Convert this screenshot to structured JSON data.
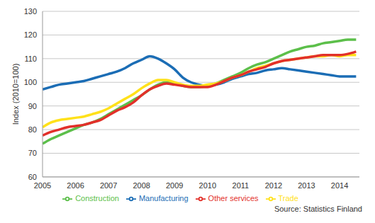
{
  "chart_data": {
    "type": "line",
    "y_label": "Index (2010=100)",
    "source": "Source: Statistics Finland",
    "x": [
      2005,
      2005.25,
      2005.5,
      2005.75,
      2006,
      2006.25,
      2006.5,
      2006.75,
      2007,
      2007.25,
      2007.5,
      2007.75,
      2008,
      2008.25,
      2008.5,
      2008.75,
      2009,
      2009.25,
      2009.5,
      2009.75,
      2010,
      2010.25,
      2010.5,
      2010.75,
      2011,
      2011.25,
      2011.5,
      2011.75,
      2012,
      2012.25,
      2012.5,
      2012.75,
      2013,
      2013.25,
      2013.5,
      2013.75,
      2014,
      2014.25,
      2014.5
    ],
    "series": [
      {
        "name": "Manufacturing",
        "color": "#1b6db5",
        "values": [
          97,
          98,
          99,
          99.5,
          100,
          100.5,
          101.5,
          102.5,
          103.5,
          104.5,
          106,
          108,
          109.5,
          111,
          110,
          108,
          105.5,
          102,
          100,
          99,
          98.5,
          99,
          100,
          101.5,
          102.5,
          103.5,
          104,
          105,
          105.5,
          106,
          105.5,
          105,
          104.5,
          104,
          103.5,
          103,
          102.5,
          102.5,
          102.5
        ]
      },
      {
        "name": "Construction",
        "color": "#5cbf4a",
        "values": [
          74,
          76,
          77.5,
          79,
          80.5,
          82,
          83,
          84.5,
          86.5,
          88.5,
          90.5,
          92.5,
          94.5,
          97,
          99,
          100,
          99.5,
          98.5,
          98,
          98,
          98.5,
          99.5,
          101,
          102.5,
          104,
          106,
          107.5,
          108.5,
          110,
          111.5,
          113,
          114,
          115,
          115.5,
          116.5,
          117,
          117.5,
          118,
          118
        ]
      },
      {
        "name": "Trade",
        "color": "#ffe11a",
        "values": [
          81,
          83,
          84,
          84.5,
          85,
          85.5,
          86.5,
          87.5,
          89,
          91,
          93,
          95,
          97.5,
          99.5,
          101,
          101,
          100,
          99,
          98.5,
          98.5,
          99,
          99.5,
          100.5,
          102,
          103,
          104.5,
          106,
          107,
          108,
          109,
          109.5,
          110,
          110.5,
          111,
          111,
          111.5,
          111,
          111.5,
          111.5
        ]
      },
      {
        "name": "Other services",
        "color": "#e2302a",
        "values": [
          77.5,
          79,
          80,
          81,
          81.5,
          82,
          83,
          84,
          86,
          88,
          89.5,
          91.5,
          94.5,
          97,
          98.5,
          99.5,
          99,
          98.5,
          98,
          98,
          98,
          99,
          100.5,
          102,
          103,
          104.5,
          105.5,
          106.5,
          108,
          109,
          109.5,
          110,
          110.5,
          111,
          111.5,
          111.5,
          111.5,
          112,
          113
        ]
      }
    ],
    "xlim": [
      2005,
      2014.6
    ],
    "xticks": [
      2005,
      2006,
      2007,
      2008,
      2009,
      2010,
      2011,
      2012,
      2013,
      2014
    ],
    "ylim": [
      60,
      130
    ],
    "yticks": [
      60,
      70,
      80,
      90,
      100,
      110,
      120,
      130
    ],
    "grid": true,
    "legend": "bottom"
  }
}
